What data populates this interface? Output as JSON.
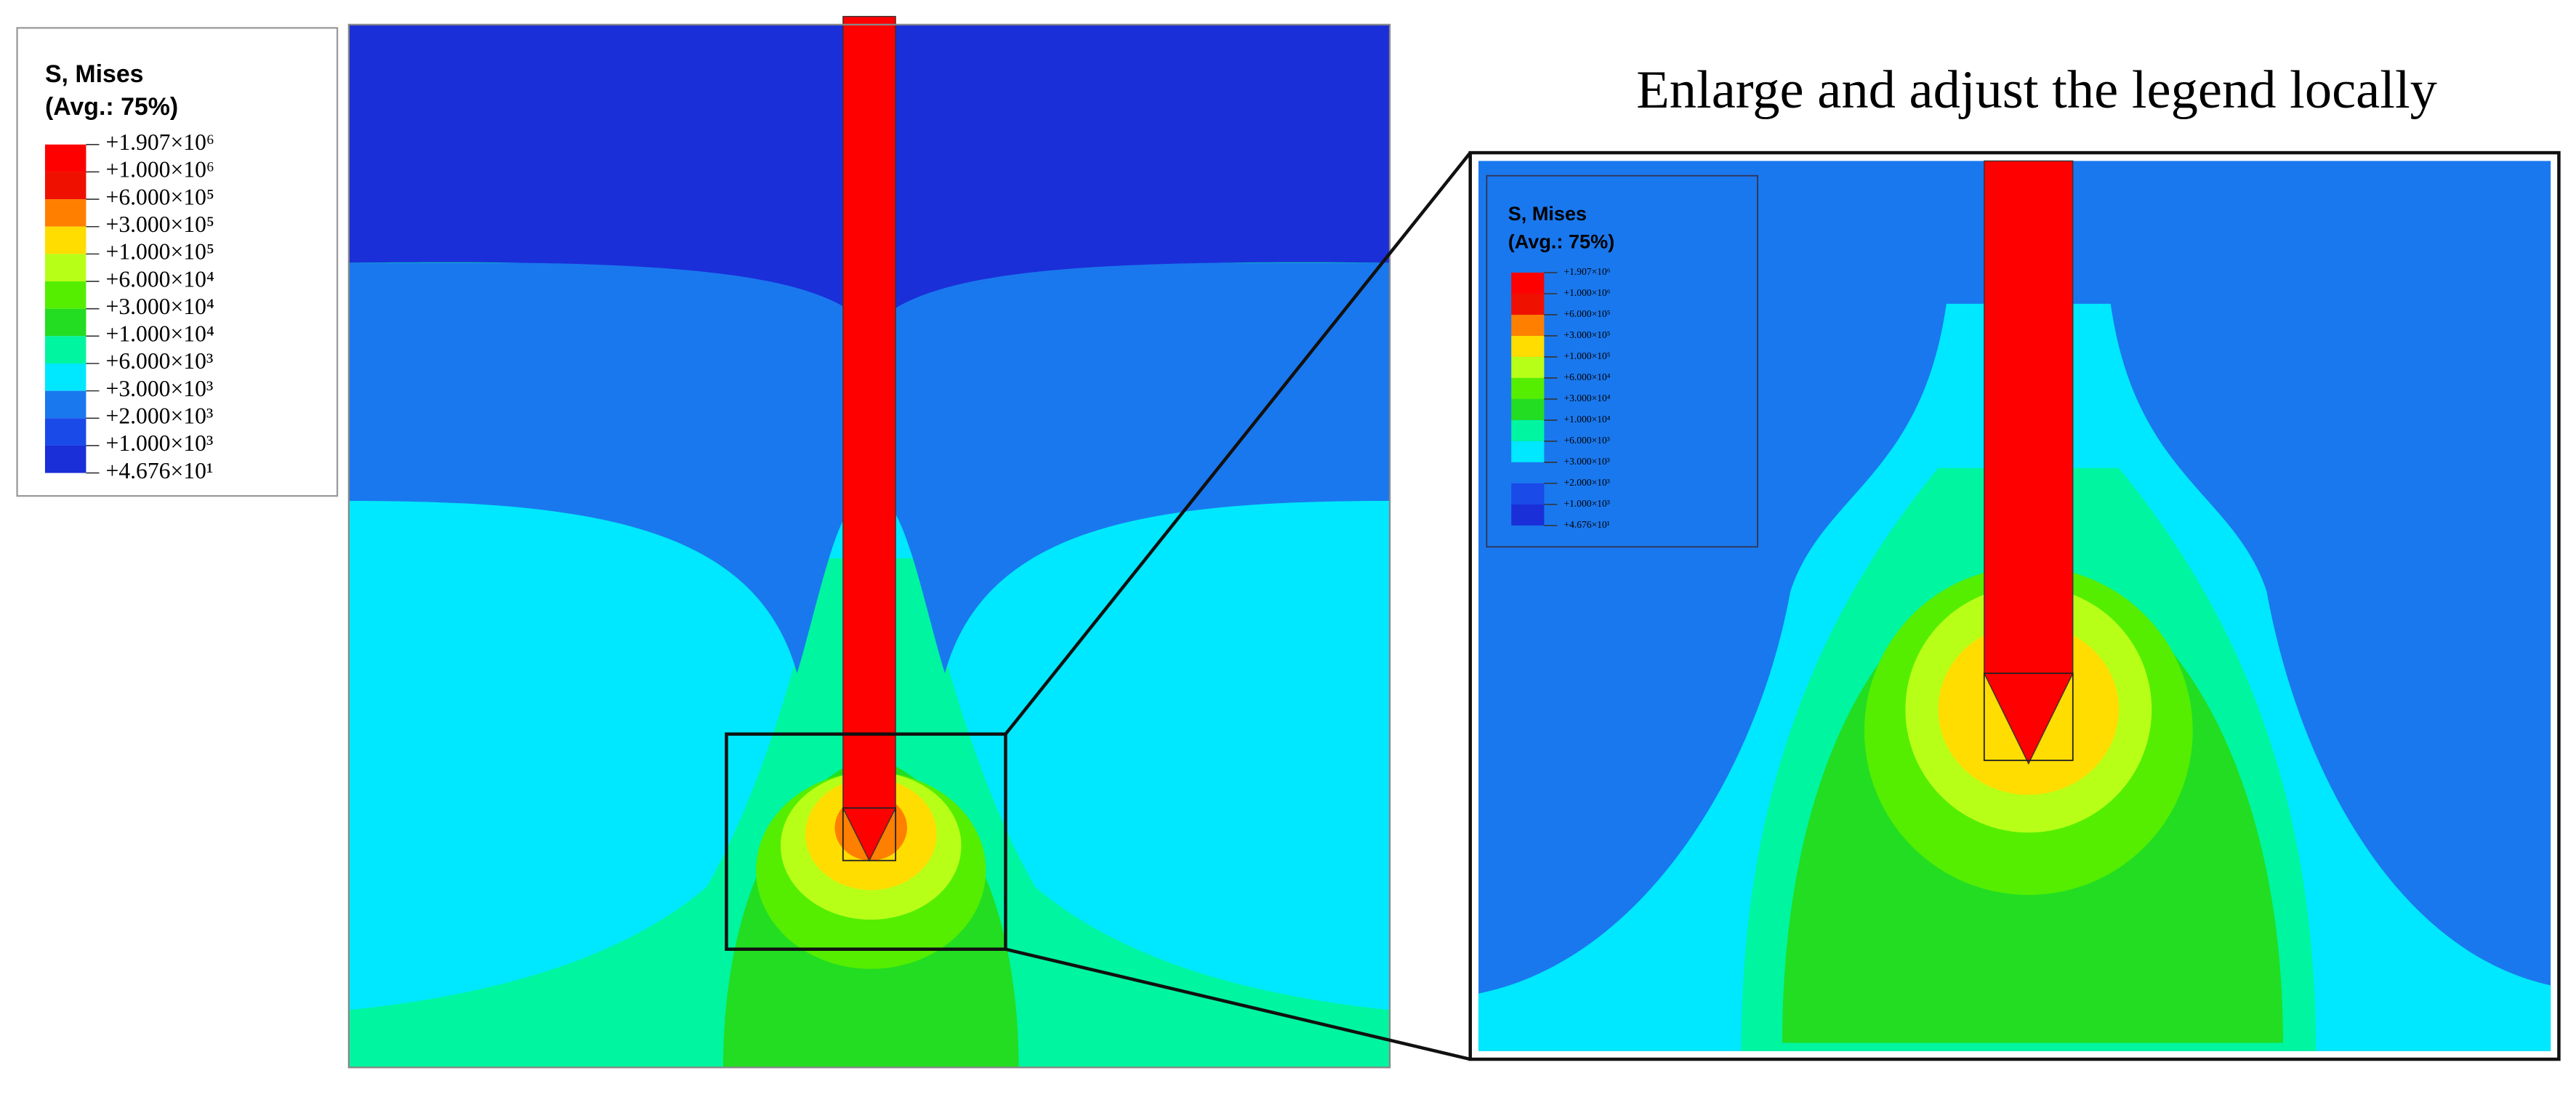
{
  "caption": "Enlarge and adjust the legend locally",
  "legend": {
    "title": "S, Mises",
    "subtitle": "(Avg.: 75%)",
    "labels": [
      "+1.907×10⁶",
      "+1.000×10⁶",
      "+6.000×10⁵",
      "+3.000×10⁵",
      "+1.000×10⁵",
      "+6.000×10⁴",
      "+3.000×10⁴",
      "+1.000×10⁴",
      "+6.000×10³",
      "+3.000×10³",
      "+2.000×10³",
      "+1.000×10³",
      "+4.676×10¹"
    ],
    "colors": [
      "#ff0000",
      "#f01000",
      "#ff7f00",
      "#ffdd00",
      "#b8ff18",
      "#55ee00",
      "#22dd22",
      "#00f5a0",
      "#00e8ff",
      "#1a78ee",
      "#1a4ae8",
      "#1a2fd8"
    ]
  }
}
